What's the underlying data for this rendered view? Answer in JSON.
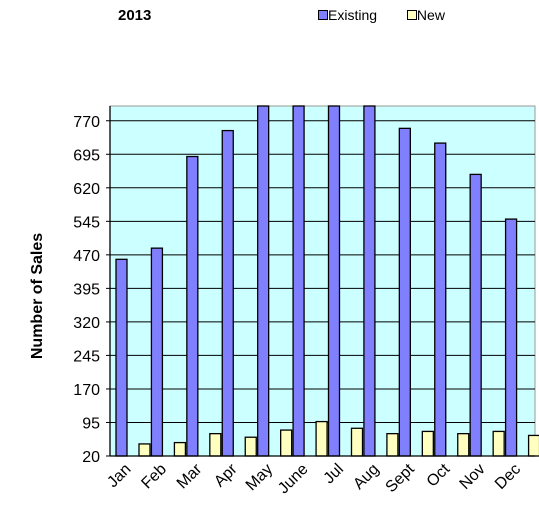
{
  "chart_data": {
    "type": "bar",
    "title": "2013",
    "ylabel": "Number of Sales",
    "xlabel": "",
    "categories": [
      "Jan",
      "Feb",
      "Mar",
      "Apr",
      "May",
      "June",
      "Jul",
      "Aug",
      "Sept",
      "Oct",
      "Nov",
      "Dec"
    ],
    "yticks": [
      "770",
      "695",
      "620",
      "545",
      "470",
      "395",
      "320",
      "245",
      "170",
      "95",
      "20"
    ],
    "ylim": [
      20,
      803
    ],
    "grid": true,
    "legend_position": "top-right",
    "series": [
      {
        "name": "Existing",
        "color": "#8080ff",
        "values": [
          460,
          485,
          690,
          748,
          803,
          803,
          803,
          803,
          753,
          720,
          650,
          550
        ]
      },
      {
        "name": "New",
        "color": "#ffffc0",
        "values": [
          47,
          50,
          70,
          62,
          78,
          97,
          82,
          70,
          75,
          70,
          75,
          66
        ]
      }
    ],
    "plot_background": "#ccffff"
  }
}
